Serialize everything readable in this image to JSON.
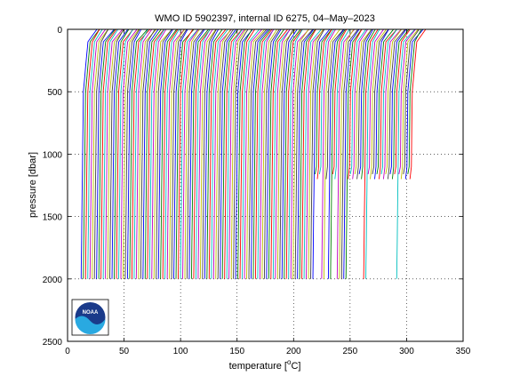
{
  "chart_data": {
    "type": "line",
    "title": "WMO ID 5902397, internal ID 6275, 04–May–2023",
    "xlabel_main": "temperature [",
    "xlabel_sup": "o",
    "xlabel_tail": "C]",
    "ylabel": "pressure [dbar]",
    "xlim": [
      0,
      350
    ],
    "ylim": [
      0,
      2500
    ],
    "y_reversed": true,
    "grid": true,
    "grid_style": "dotted",
    "xticks": [
      0,
      50,
      100,
      150,
      200,
      250,
      300,
      350
    ],
    "yticks": [
      0,
      500,
      1000,
      1500,
      2000,
      2500
    ],
    "profiles": {
      "description_offset": "each successive profile shifted right in temperature",
      "count": 150,
      "x_start_first": 12,
      "x_start_last": 303,
      "surface_temperature_offset": 14,
      "deep_profile_count_full_depth": 105,
      "full_depth_pressure": 2000,
      "shallow_bottom_pressures": [
        1160,
        1200
      ]
    },
    "colors": [
      "#0000ff",
      "#008000",
      "#ff0000",
      "#00bfbf",
      "#bf00bf",
      "#bfbf00",
      "#404040"
    ]
  },
  "logo": {
    "text": "NOAA",
    "name": "noaa-logo"
  }
}
